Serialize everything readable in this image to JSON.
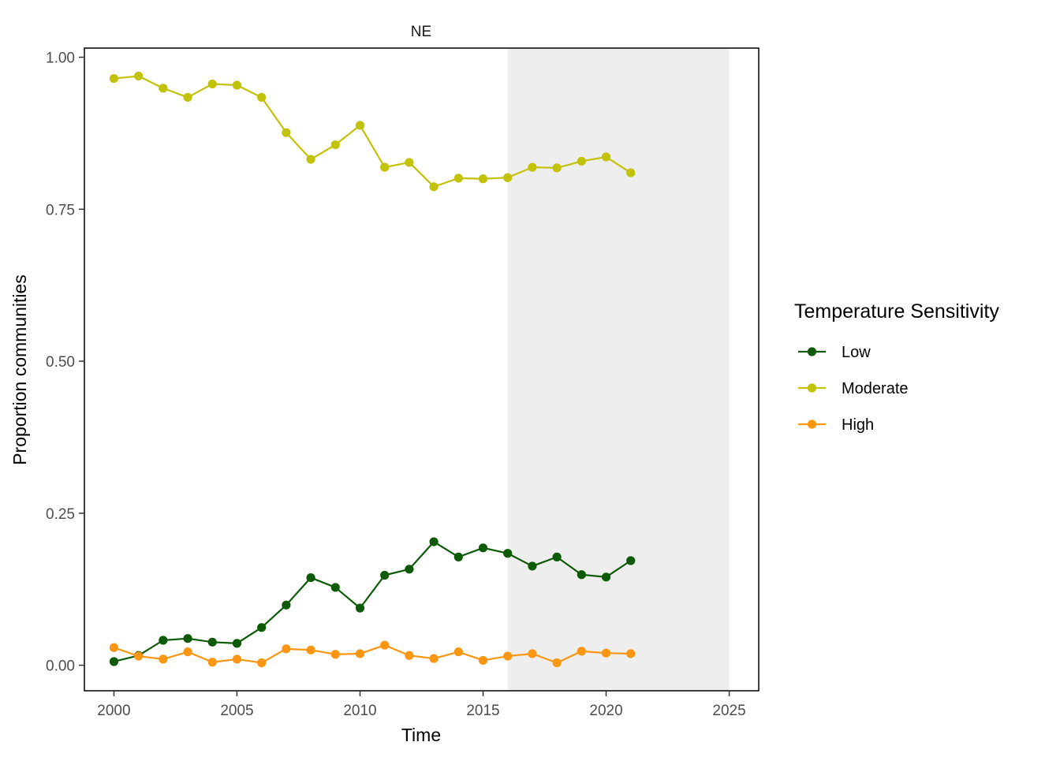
{
  "chart_data": {
    "type": "line",
    "facet_label": "NE",
    "xlabel": "Time",
    "ylabel": "Proportion communities",
    "xlim": [
      1998.8,
      2026.2
    ],
    "ylim": [
      -0.042,
      1.015
    ],
    "x_ticks": [
      2000,
      2005,
      2010,
      2015,
      2020,
      2025
    ],
    "x_tick_labels": [
      "2000",
      "2005",
      "2010",
      "2015",
      "2020",
      "2025"
    ],
    "y_ticks": [
      0,
      0.25,
      0.5,
      0.75,
      1.0
    ],
    "y_tick_labels": [
      "0.00",
      "0.25",
      "0.50",
      "0.75",
      "1.00"
    ],
    "shaded_region": {
      "x_start": 2016,
      "x_end": 2025,
      "color": "#eeeeee"
    },
    "grid": false,
    "legend": {
      "title": "Temperature Sensitivity",
      "placement": "right"
    },
    "x": [
      2000,
      2001,
      2002,
      2003,
      2004,
      2005,
      2006,
      2007,
      2008,
      2009,
      2010,
      2011,
      2012,
      2013,
      2014,
      2015,
      2016,
      2017,
      2018,
      2019,
      2020,
      2021
    ],
    "series": [
      {
        "name": "Low",
        "color": "#0d5a07",
        "values": [
          0.006,
          0.016,
          0.041,
          0.044,
          0.038,
          0.036,
          0.062,
          0.099,
          0.144,
          0.128,
          0.094,
          0.148,
          0.158,
          0.203,
          0.178,
          0.193,
          0.184,
          0.163,
          0.178,
          0.149,
          0.145,
          0.172
        ]
      },
      {
        "name": "Moderate",
        "color": "#c2c208",
        "values": [
          0.965,
          0.969,
          0.949,
          0.934,
          0.956,
          0.954,
          0.934,
          0.876,
          0.832,
          0.856,
          0.888,
          0.819,
          0.827,
          0.787,
          0.801,
          0.8,
          0.802,
          0.819,
          0.818,
          0.829,
          0.836,
          0.81
        ]
      },
      {
        "name": "High",
        "color": "#fb9612",
        "values": [
          0.029,
          0.015,
          0.01,
          0.022,
          0.005,
          0.01,
          0.004,
          0.027,
          0.025,
          0.018,
          0.019,
          0.033,
          0.016,
          0.011,
          0.022,
          0.008,
          0.015,
          0.019,
          0.004,
          0.023,
          0.02,
          0.019
        ]
      }
    ]
  }
}
